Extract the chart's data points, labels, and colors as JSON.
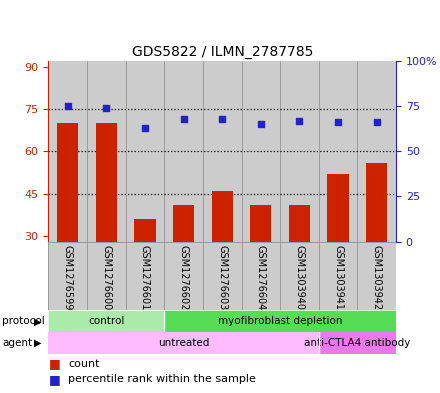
{
  "title": "GDS5822 / ILMN_2787785",
  "samples": [
    "GSM1276599",
    "GSM1276600",
    "GSM1276601",
    "GSM1276602",
    "GSM1276603",
    "GSM1276604",
    "GSM1303940",
    "GSM1303941",
    "GSM1303942"
  ],
  "counts": [
    70,
    70,
    36,
    41,
    46,
    41,
    41,
    52,
    56
  ],
  "percentiles": [
    75,
    74,
    63,
    68,
    68,
    65,
    67,
    66,
    66
  ],
  "ylim_left": [
    28,
    92
  ],
  "ylim_right": [
    0,
    100
  ],
  "yticks_left": [
    30,
    45,
    60,
    75,
    90
  ],
  "yticks_right": [
    0,
    25,
    50,
    75,
    100
  ],
  "bar_color": "#CC2200",
  "dot_color": "#2222CC",
  "bar_width": 0.55,
  "protocol_labels": [
    {
      "text": "control",
      "start": 0,
      "end": 3,
      "color": "#AAEAAA"
    },
    {
      "text": "myofibroblast depletion",
      "start": 3,
      "end": 9,
      "color": "#55DD55"
    }
  ],
  "agent_labels": [
    {
      "text": "untreated",
      "start": 0,
      "end": 7,
      "color": "#FFBBFF"
    },
    {
      "text": "anti-CTLA4 antibody",
      "start": 7,
      "end": 9,
      "color": "#EE77EE"
    }
  ],
  "dotted_line_color": "black",
  "panel_bg": "#CCCCCC",
  "panel_border": "#888888",
  "left_label_color": "#CC2200",
  "right_label_color": "#2222CC"
}
